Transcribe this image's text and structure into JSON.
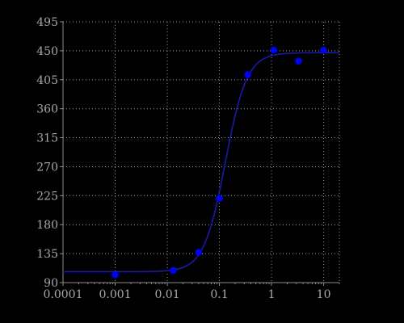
{
  "chart_data": {
    "type": "scatter",
    "title": "",
    "xlabel": "",
    "ylabel": "",
    "x_scale": "log",
    "xlim": [
      0.0001,
      20
    ],
    "ylim": [
      90,
      495
    ],
    "x_ticks": [
      0.0001,
      0.001,
      0.01,
      0.1,
      1,
      10
    ],
    "x_tick_labels": [
      "0.0001",
      "0.001",
      "0.01",
      "0.1",
      "1",
      "10"
    ],
    "y_ticks": [
      90,
      135,
      180,
      225,
      270,
      315,
      360,
      405,
      450,
      495
    ],
    "y_tick_labels": [
      "90",
      "135",
      "180",
      "225",
      "270",
      "315",
      "360",
      "405",
      "450",
      "495"
    ],
    "grid": true,
    "legend": "none",
    "colors": {
      "background": "#000000",
      "axis": "#8c8c8c",
      "grid": "#9a9a9a",
      "tick_label": "#a9a9a9",
      "points": "#0000ff",
      "curve": "#1a1aa8"
    },
    "series": [
      {
        "kind": "points",
        "x": [
          0.001,
          0.013,
          0.04,
          0.1,
          0.35,
          1.1,
          3.3,
          10
        ],
        "y": [
          102,
          109,
          137,
          221,
          413,
          451,
          434,
          451
        ]
      },
      {
        "kind": "fitted-curve",
        "bottom": 107,
        "top": 447,
        "ec50": 0.13,
        "hill": 2.1
      }
    ]
  }
}
